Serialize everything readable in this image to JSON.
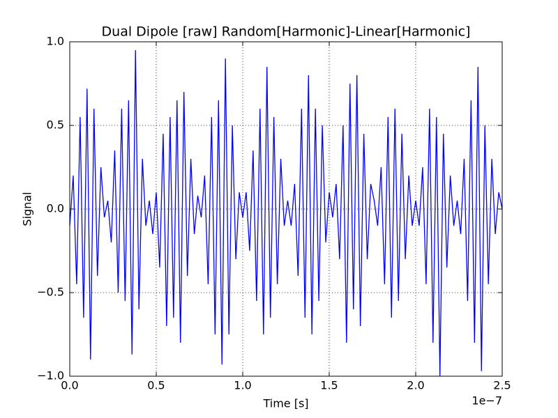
{
  "chart_data": {
    "type": "line",
    "title": "Dual Dipole [raw] Random[Harmonic]-Linear[Harmonic]",
    "xlabel": "Time [s]",
    "ylabel": "Signal",
    "x_offset_label": "1e−7",
    "x": [
      0,
      2e-09,
      4e-09,
      6e-09,
      8e-09,
      1e-08,
      1.2e-08,
      1.4e-08,
      1.6e-08,
      1.8e-08,
      2e-08,
      2.2e-08,
      2.4e-08,
      2.6e-08,
      2.8e-08,
      3e-08,
      3.2e-08,
      3.4e-08,
      3.6e-08,
      3.8e-08,
      4e-08,
      4.2e-08,
      4.4e-08,
      4.6e-08,
      4.8e-08,
      5e-08,
      5.2e-08,
      5.4e-08,
      5.6e-08,
      5.8e-08,
      6e-08,
      6.2e-08,
      6.4e-08,
      6.6e-08,
      6.8e-08,
      7e-08,
      7.2e-08,
      7.4e-08,
      7.6e-08,
      7.8e-08,
      8e-08,
      8.2e-08,
      8.4e-08,
      8.6e-08,
      8.8e-08,
      9e-08,
      9.2e-08,
      9.4e-08,
      9.6e-08,
      9.8e-08,
      1e-07,
      1.02e-07,
      1.04e-07,
      1.06e-07,
      1.08e-07,
      1.1e-07,
      1.12e-07,
      1.14e-07,
      1.16e-07,
      1.18e-07,
      1.2e-07,
      1.22e-07,
      1.24e-07,
      1.26e-07,
      1.28e-07,
      1.3e-07,
      1.32e-07,
      1.34e-07,
      1.36e-07,
      1.38e-07,
      1.4e-07,
      1.42e-07,
      1.44e-07,
      1.46e-07,
      1.48e-07,
      1.5e-07,
      1.52e-07,
      1.54e-07,
      1.56e-07,
      1.58e-07,
      1.6e-07,
      1.62e-07,
      1.64e-07,
      1.66e-07,
      1.68e-07,
      1.7e-07,
      1.72e-07,
      1.74e-07,
      1.76e-07,
      1.78e-07,
      1.8e-07,
      1.82e-07,
      1.84e-07,
      1.86e-07,
      1.88e-07,
      1.9e-07,
      1.92e-07,
      1.94e-07,
      1.96e-07,
      1.98e-07,
      2e-07,
      2.02e-07,
      2.04e-07,
      2.06e-07,
      2.08e-07,
      2.1e-07,
      2.12e-07,
      2.14e-07,
      2.16e-07,
      2.18e-07,
      2.2e-07,
      2.22e-07,
      2.24e-07,
      2.26e-07,
      2.28e-07,
      2.3e-07,
      2.32e-07,
      2.34e-07,
      2.36e-07,
      2.38e-07,
      2.4e-07,
      2.42e-07,
      2.44e-07,
      2.46e-07,
      2.48e-07,
      2.5e-07
    ],
    "series": [
      {
        "color": "#0000ff",
        "values": [
          -0.1,
          0.2,
          -0.45,
          0.55,
          -0.65,
          0.72,
          -0.9,
          0.6,
          -0.4,
          0.25,
          -0.05,
          0.05,
          -0.2,
          0.35,
          -0.5,
          0.6,
          -0.55,
          0.65,
          -0.87,
          0.95,
          -0.6,
          0.3,
          -0.1,
          0.05,
          -0.15,
          0.1,
          -0.35,
          0.45,
          -0.7,
          0.55,
          -0.65,
          0.65,
          -0.8,
          0.7,
          -0.4,
          0.3,
          -0.15,
          0.08,
          -0.05,
          0.2,
          -0.45,
          0.55,
          -0.75,
          0.65,
          -0.93,
          0.9,
          -0.75,
          0.5,
          -0.3,
          0.1,
          -0.05,
          0.1,
          -0.25,
          0.35,
          -0.55,
          0.6,
          -0.75,
          0.85,
          -0.65,
          0.55,
          -0.45,
          0.3,
          -0.1,
          0.05,
          -0.1,
          0.15,
          -0.4,
          0.6,
          -0.65,
          0.8,
          -0.75,
          0.6,
          -0.55,
          0.5,
          -0.2,
          0.1,
          -0.05,
          0.15,
          -0.3,
          0.5,
          -0.8,
          0.75,
          -0.6,
          0.8,
          -0.7,
          0.45,
          -0.3,
          0.15,
          0.05,
          -0.1,
          0.25,
          -0.45,
          0.55,
          -0.65,
          0.6,
          -0.55,
          0.45,
          -0.3,
          0.2,
          -0.1,
          0.05,
          -0.1,
          0.25,
          -0.45,
          0.6,
          -0.8,
          0.55,
          -1.0,
          0.45,
          -0.35,
          0.2,
          -0.1,
          0.05,
          -0.15,
          0.3,
          -0.55,
          0.65,
          -0.8,
          0.85,
          -0.97,
          0.5,
          -0.45,
          0.3,
          -0.15,
          0.1,
          0.0
        ]
      }
    ],
    "xlim": [
      0,
      2.5e-07
    ],
    "xticks": [
      {
        "value": 0,
        "label": "0.0"
      },
      {
        "value": 5e-08,
        "label": "0.5"
      },
      {
        "value": 1e-07,
        "label": "1.0"
      },
      {
        "value": 1.5e-07,
        "label": "1.5"
      },
      {
        "value": 2e-07,
        "label": "2.0"
      },
      {
        "value": 2.5e-07,
        "label": "2.5"
      }
    ],
    "ylim": [
      -1,
      1
    ],
    "yticks": [
      {
        "value": -1,
        "label": "−1.0"
      },
      {
        "value": -0.5,
        "label": "−0.5"
      },
      {
        "value": 0,
        "label": "0.0"
      },
      0.5,
      {
        "value": 1,
        "label": "1.0"
      }
    ],
    "grid": true
  }
}
